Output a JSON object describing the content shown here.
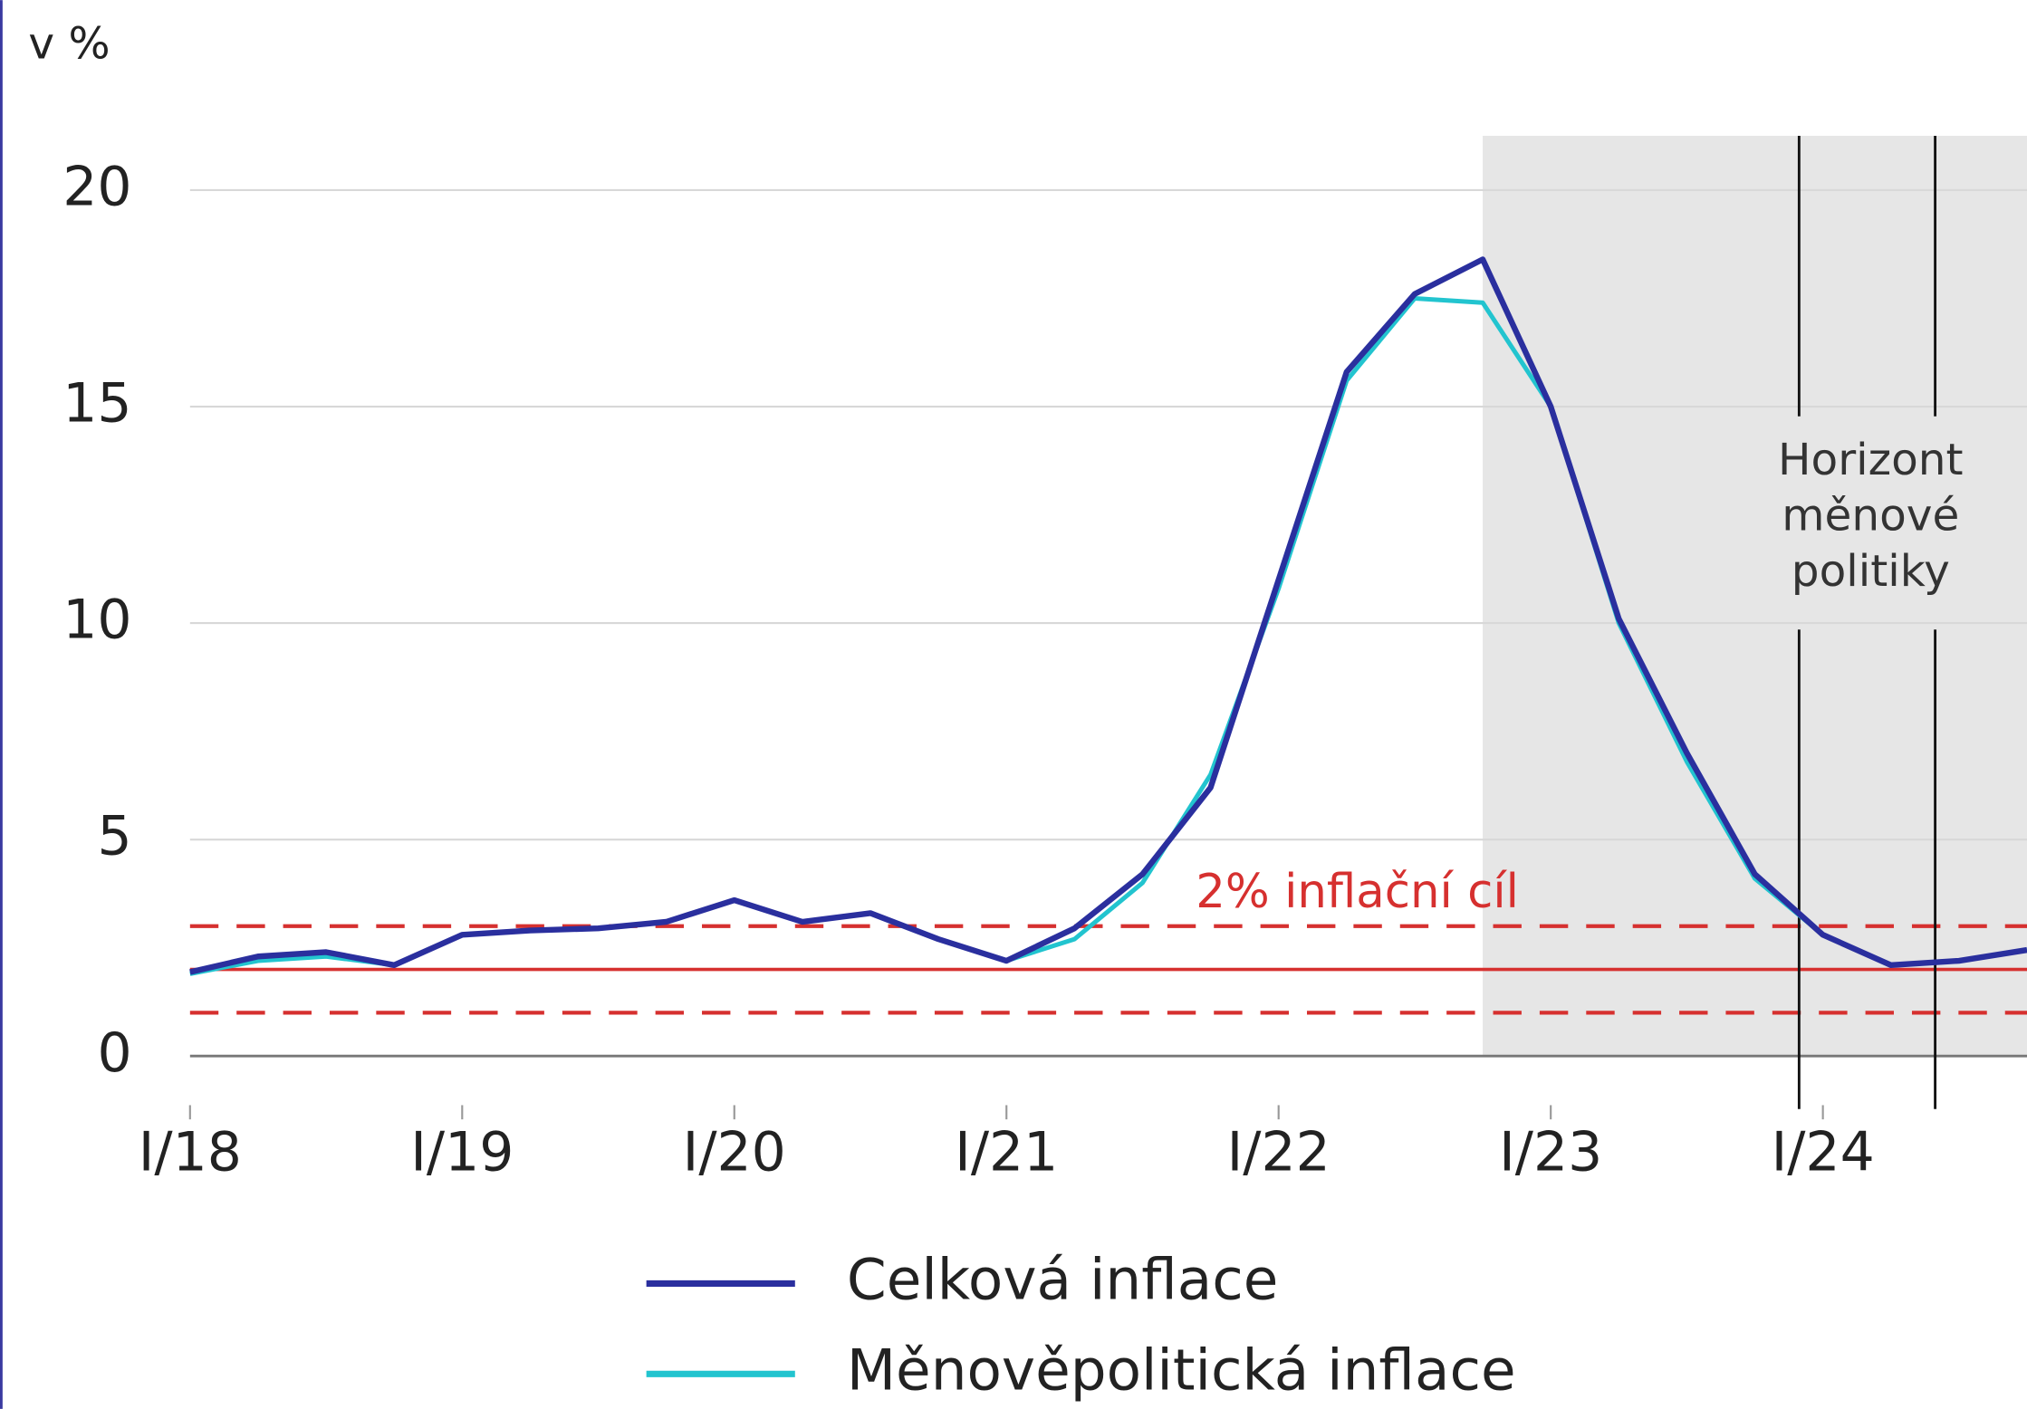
{
  "chart_data": {
    "type": "line",
    "y_label": "v %",
    "categories": [
      "I/18",
      null,
      null,
      null,
      "I/19",
      null,
      null,
      null,
      "I/20",
      null,
      null,
      null,
      "I/21",
      null,
      null,
      null,
      "I/22",
      null,
      null,
      null,
      "I/23",
      null,
      null,
      null,
      "I/24",
      null,
      null,
      null
    ],
    "series": [
      {
        "name": "Celková inflace",
        "color": "#2a2f9e",
        "values": [
          1.94,
          2.3,
          2.4,
          2.1,
          2.8,
          2.9,
          2.95,
          3.1,
          3.6,
          3.1,
          3.3,
          2.7,
          2.2,
          2.95,
          4.2,
          6.2,
          11.0,
          15.8,
          17.6,
          18.4,
          15.0,
          10.1,
          7.0,
          4.2,
          2.8,
          2.1,
          2.2,
          2.45
        ]
      },
      {
        "name": "Měnověpolitická inflace",
        "color": "#22c4cf",
        "values": [
          1.9,
          2.2,
          2.3,
          2.1,
          2.8,
          2.9,
          2.95,
          3.1,
          3.6,
          3.1,
          3.3,
          2.7,
          2.2,
          2.7,
          4.0,
          6.5,
          10.8,
          15.6,
          17.5,
          17.4,
          15.0,
          10.0,
          6.8,
          4.1,
          2.8,
          2.1,
          2.2,
          2.45
        ]
      }
    ],
    "ylim": [
      0,
      20
    ],
    "yticks": [
      0,
      5,
      10,
      15,
      20
    ],
    "grid": true,
    "target": {
      "label": "2% inflační cíl",
      "value": 2,
      "band": [
        1,
        3
      ],
      "color": "#d6302f"
    },
    "forecast_from": 19,
    "horizon": {
      "label_lines": [
        "Horizont",
        "měnové",
        "politiky"
      ],
      "positions": [
        23.65,
        25.65
      ]
    }
  }
}
